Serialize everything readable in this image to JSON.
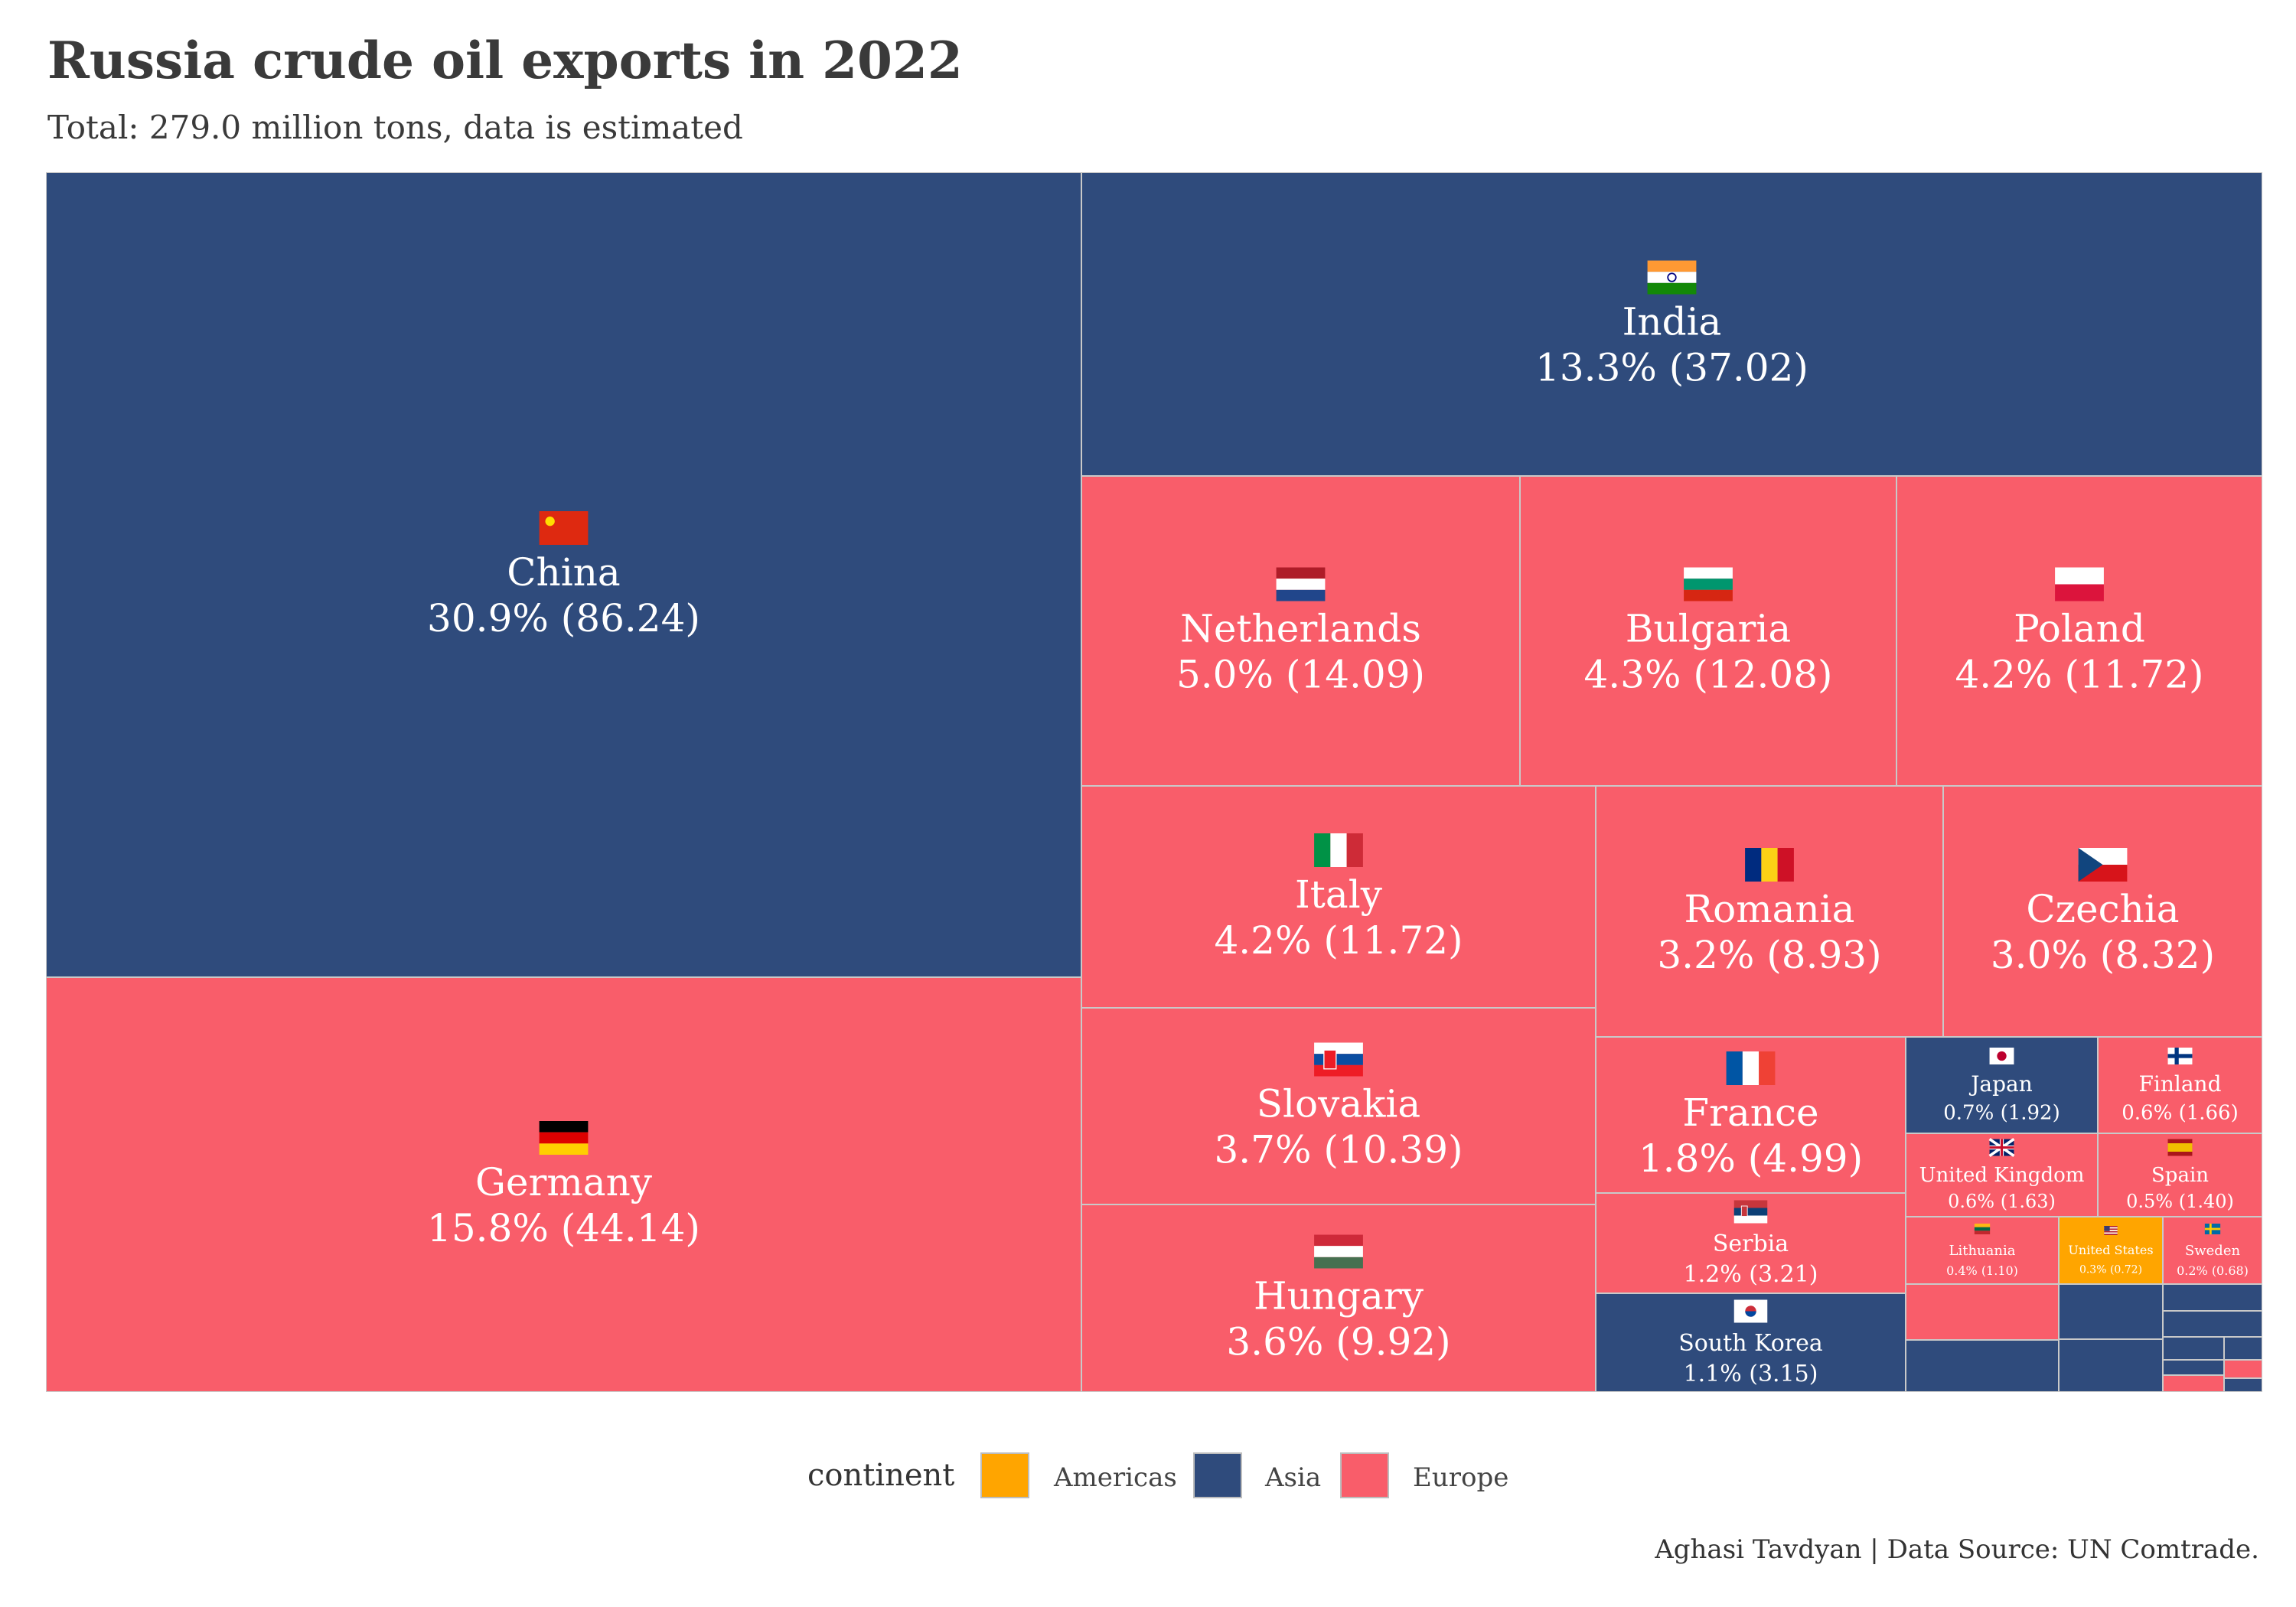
{
  "title": "Russia crude oil exports in 2022",
  "subtitle": "Total: 279.0 million tons, data is estimated",
  "caption": "Aghasi Tavdyan | Data Source: UN Comtrade.",
  "colors": {
    "Americas": "#FFA500",
    "Asia": "#2F4B7C",
    "Europe": "#F95D6A",
    "border": "#c9c9c9"
  },
  "legend": {
    "title": "continent",
    "items": [
      {
        "label": "Americas",
        "color": "#FFA500"
      },
      {
        "label": "Asia",
        "color": "#2F4B7C"
      },
      {
        "label": "Europe",
        "color": "#F95D6A"
      }
    ]
  },
  "chart_data": {
    "type": "treemap",
    "title": "Russia crude oil exports in 2022",
    "subtitle": "Total: 279.0 million tons, data is estimated",
    "total": 279.0,
    "legend_title": "continent",
    "legend_position": "bottom",
    "series": [
      {
        "name": "China",
        "continent": "Asia",
        "value": 86.24,
        "share": "30.9%",
        "label": "30.9% (86.24)",
        "flag": "China"
      },
      {
        "name": "Germany",
        "continent": "Europe",
        "value": 44.14,
        "share": "15.8%",
        "label": "15.8% (44.14)",
        "flag": "Germany"
      },
      {
        "name": "India",
        "continent": "Asia",
        "value": 37.02,
        "share": "13.3%",
        "label": "13.3% (37.02)",
        "flag": "India"
      },
      {
        "name": "Netherlands",
        "continent": "Europe",
        "value": 14.09,
        "share": "5.0%",
        "label": "5.0% (14.09)",
        "flag": "Netherlands"
      },
      {
        "name": "Bulgaria",
        "continent": "Europe",
        "value": 12.08,
        "share": "4.3%",
        "label": "4.3% (12.08)",
        "flag": "Bulgaria"
      },
      {
        "name": "Poland",
        "continent": "Europe",
        "value": 11.72,
        "share": "4.2%",
        "label": "4.2% (11.72)",
        "flag": "Poland"
      },
      {
        "name": "Italy",
        "continent": "Europe",
        "value": 11.72,
        "share": "4.2%",
        "label": "4.2% (11.72)",
        "flag": "Italy"
      },
      {
        "name": "Slovakia",
        "continent": "Europe",
        "value": 10.39,
        "share": "3.7%",
        "label": "3.7% (10.39)",
        "flag": "Slovakia"
      },
      {
        "name": "Hungary",
        "continent": "Europe",
        "value": 9.92,
        "share": "3.6%",
        "label": "3.6% (9.92)",
        "flag": "Hungary"
      },
      {
        "name": "Romania",
        "continent": "Europe",
        "value": 8.93,
        "share": "3.2%",
        "label": "3.2% (8.93)",
        "flag": "Romania"
      },
      {
        "name": "Czechia",
        "continent": "Europe",
        "value": 8.32,
        "share": "3.0%",
        "label": "3.0% (8.32)",
        "flag": "Czechia"
      },
      {
        "name": "France",
        "continent": "Europe",
        "value": 4.99,
        "share": "1.8%",
        "label": "1.8% (4.99)",
        "flag": "France"
      },
      {
        "name": "Serbia",
        "continent": "Europe",
        "value": 3.21,
        "share": "1.2%",
        "label": "1.2% (3.21)",
        "flag": "Serbia"
      },
      {
        "name": "South Korea",
        "continent": "Asia",
        "value": 3.15,
        "share": "1.1%",
        "label": "1.1% (3.15)",
        "flag": "South Korea"
      },
      {
        "name": "Japan",
        "continent": "Asia",
        "value": 1.92,
        "share": "0.7%",
        "label": "0.7% (1.92)",
        "flag": "Japan"
      },
      {
        "name": "Finland",
        "continent": "Europe",
        "value": 1.66,
        "share": "0.6%",
        "label": "0.6% (1.66)",
        "flag": "Finland"
      },
      {
        "name": "United Kingdom",
        "continent": "Europe",
        "value": 1.63,
        "share": "0.6%",
        "label": "0.6% (1.63)",
        "flag": "United Kingdom"
      },
      {
        "name": "Spain",
        "continent": "Europe",
        "value": 1.4,
        "share": "0.5%",
        "label": "0.5% (1.40)",
        "flag": "Spain"
      },
      {
        "name": "Lithuania",
        "continent": "Europe",
        "value": 1.1,
        "share": "0.4%",
        "label": "0.4% (1.10)",
        "flag": "Lithuania"
      },
      {
        "name": "United States",
        "continent": "Americas",
        "value": 0.72,
        "share": "0.3%",
        "label": "0.3% (0.72)",
        "flag": "United States"
      },
      {
        "name": "Sweden",
        "continent": "Europe",
        "value": 0.68,
        "share": "0.2%",
        "label": "0.2% (0.68)",
        "flag": "Sweden"
      },
      {
        "continent": "Europe"
      },
      {
        "continent": "Asia"
      },
      {
        "continent": "Asia"
      },
      {
        "continent": "Asia"
      },
      {
        "continent": "Asia"
      },
      {
        "continent": "Asia"
      },
      {
        "continent": "Asia"
      },
      {
        "continent": "Asia"
      },
      {
        "continent": "Asia"
      },
      {
        "continent": "Europe"
      },
      {
        "continent": "Europe"
      },
      {
        "continent": "Asia"
      }
    ]
  }
}
